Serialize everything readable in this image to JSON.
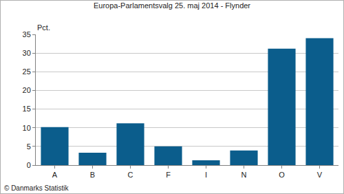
{
  "chart_data": {
    "type": "bar",
    "title": "Europa-Parlamentsvalg 25. maj 2014 - Flynder",
    "ylabel": "Pct.",
    "categories": [
      "A",
      "B",
      "C",
      "F",
      "I",
      "N",
      "O",
      "V"
    ],
    "values": [
      10.2,
      3.3,
      11.2,
      5.0,
      1.3,
      3.9,
      31.2,
      34.0
    ],
    "color": "#0b5d8c",
    "ylim": [
      0,
      35
    ],
    "yticks": [
      0,
      5,
      10,
      15,
      20,
      25,
      30,
      35
    ],
    "grid": true,
    "annotations": [
      "© Danmarks Statistik"
    ]
  }
}
